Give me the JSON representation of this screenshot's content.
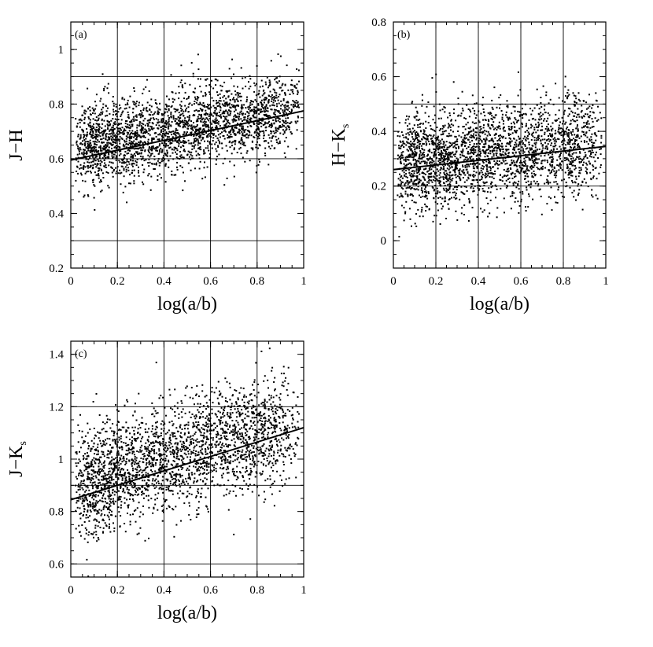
{
  "figure": {
    "colors": {
      "ink": "#000000",
      "background": "#ffffff"
    }
  },
  "chart_data": [
    {
      "type": "scatter",
      "panel_label": "(a)",
      "xlabel": "log(a/b)",
      "ylabel": "J−H",
      "xlim": [
        0,
        1
      ],
      "ylim": [
        0.2,
        1.1
      ],
      "xticks": [
        0,
        0.2,
        0.4,
        0.6,
        0.8,
        1
      ],
      "xtick_labels": [
        "0",
        "0.2",
        "0.4",
        "0.6",
        "0.8",
        "1"
      ],
      "yticks": [
        0.2,
        0.4,
        0.6,
        0.8,
        1
      ],
      "ytick_labels": [
        "0.2",
        "0.4",
        "0.6",
        "0.8",
        "1"
      ],
      "grid_x": [
        0.2,
        0.4,
        0.6,
        0.8
      ],
      "grid_y": [
        0.3,
        0.6,
        0.9
      ],
      "fit_line": {
        "x": [
          0,
          1
        ],
        "y": [
          0.595,
          0.775
        ]
      },
      "cloud": {
        "n_points": 2600,
        "x_range": [
          0.02,
          0.98
        ],
        "x_mode": 0.3,
        "y_intercept": 0.64,
        "y_slope": 0.14,
        "y_spread": 0.1
      }
    },
    {
      "type": "scatter",
      "panel_label": "(b)",
      "xlabel": "log(a/b)",
      "ylabel": "H−K",
      "ylabel_subscript": "s",
      "xlim": [
        0,
        1
      ],
      "ylim": [
        -0.1,
        0.8
      ],
      "xticks": [
        0,
        0.2,
        0.4,
        0.6,
        0.8,
        1
      ],
      "xtick_labels": [
        "0",
        "0.2",
        "0.4",
        "0.6",
        "0.8",
        "1"
      ],
      "yticks": [
        0,
        0.2,
        0.4,
        0.6,
        0.8
      ],
      "ytick_labels": [
        "0",
        "0.2",
        "0.4",
        "0.6",
        "0.8"
      ],
      "grid_x": [
        0.2,
        0.4,
        0.6,
        0.8
      ],
      "grid_y": [
        0.2,
        0.5
      ],
      "fit_line": {
        "x": [
          0,
          1
        ],
        "y": [
          0.26,
          0.345
        ]
      },
      "cloud": {
        "n_points": 2600,
        "x_range": [
          0.02,
          0.98
        ],
        "x_mode": 0.3,
        "y_intercept": 0.28,
        "y_slope": 0.08,
        "y_spread": 0.12
      }
    },
    {
      "type": "scatter",
      "panel_label": "(c)",
      "xlabel": "log(a/b)",
      "ylabel": "J−K",
      "ylabel_subscript": "s",
      "xlim": [
        0,
        1
      ],
      "ylim": [
        0.55,
        1.45
      ],
      "xticks": [
        0,
        0.2,
        0.4,
        0.6,
        0.8,
        1
      ],
      "xtick_labels": [
        "0",
        "0.2",
        "0.4",
        "0.6",
        "0.8",
        "1"
      ],
      "yticks": [
        0.6,
        0.8,
        1,
        1.2,
        1.4
      ],
      "ytick_labels": [
        "0.6",
        "0.8",
        "1",
        "1.2",
        "1.4"
      ],
      "grid_x": [
        0.2,
        0.4,
        0.6,
        0.8
      ],
      "grid_y": [
        0.6,
        0.9,
        1.2
      ],
      "fit_line": {
        "x": [
          0,
          1
        ],
        "y": [
          0.845,
          1.12
        ]
      },
      "cloud": {
        "n_points": 2600,
        "x_range": [
          0.02,
          0.98
        ],
        "x_mode": 0.3,
        "y_intercept": 0.9,
        "y_slope": 0.24,
        "y_spread": 0.14
      }
    }
  ]
}
